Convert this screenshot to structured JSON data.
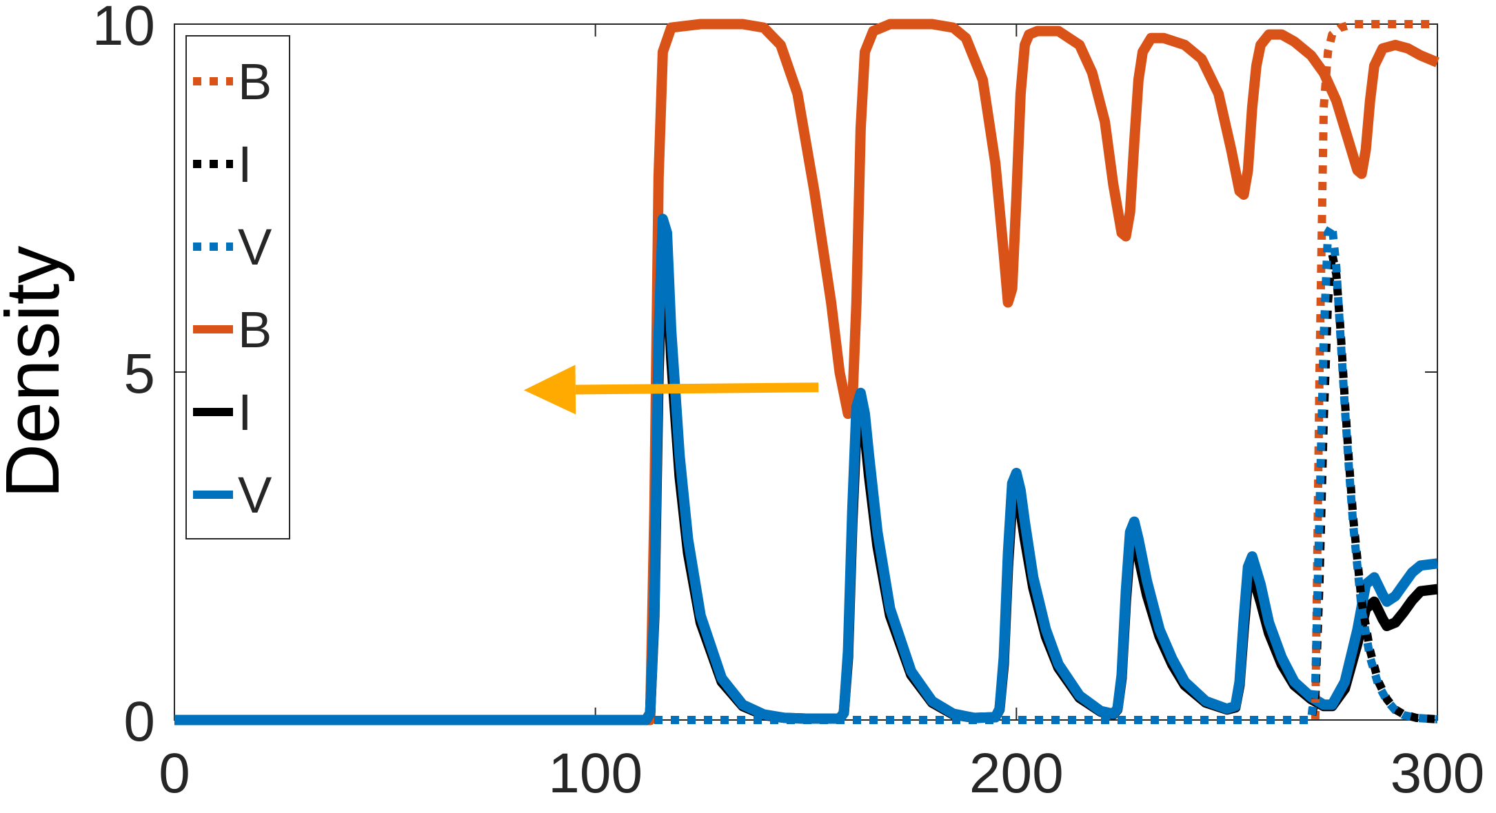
{
  "chart_data": {
    "type": "line",
    "xlabel": "",
    "ylabel": "Density",
    "xlim": [
      0,
      300
    ],
    "ylim": [
      0,
      10
    ],
    "xticks": [
      "0",
      "100",
      "200",
      "300"
    ],
    "yticks": [
      "0",
      "5",
      "10"
    ],
    "grid": false,
    "legend_position": "top-left",
    "colors": {
      "B": "#d95319",
      "I": "#000000",
      "V": "#0072bd",
      "arrow": "#ffaa00"
    },
    "annotations": [
      {
        "type": "arrow",
        "direction": "left",
        "from": [
          153,
          4.78
        ],
        "to": [
          83,
          4.74
        ]
      }
    ],
    "series": [
      {
        "name": "B",
        "style": "dotted",
        "color": "#d95319",
        "x": [
          0,
          271,
          272,
          273,
          274,
          275,
          277,
          280,
          290,
          300
        ],
        "y": [
          0,
          0,
          5,
          8.8,
          9.6,
          9.85,
          9.95,
          10,
          10,
          10
        ]
      },
      {
        "name": "I",
        "style": "dotted",
        "color": "#000000",
        "x": [
          0,
          270,
          271,
          272,
          273,
          274,
          275,
          276,
          277,
          278,
          279,
          280,
          282,
          284,
          286,
          288,
          290,
          292,
          295,
          300
        ],
        "y": [
          0,
          0,
          0.3,
          2.0,
          4.3,
          6.0,
          6.7,
          6.4,
          5.6,
          4.6,
          3.7,
          2.9,
          1.7,
          1.0,
          0.55,
          0.3,
          0.15,
          0.08,
          0.03,
          0.01
        ]
      },
      {
        "name": "V",
        "style": "dotted",
        "color": "#0072bd",
        "x": [
          0,
          270,
          271,
          272,
          273,
          274,
          275,
          276,
          277,
          278,
          279,
          280,
          282,
          284,
          286,
          288,
          290,
          292,
          295,
          300
        ],
        "y": [
          0,
          0,
          0.5,
          3.0,
          5.5,
          7.0,
          7.1,
          6.5,
          5.5,
          4.5,
          3.6,
          2.8,
          1.6,
          0.9,
          0.5,
          0.28,
          0.14,
          0.07,
          0.03,
          0.01
        ]
      },
      {
        "name": "B",
        "style": "solid",
        "color": "#d95319",
        "x": [
          0,
          113,
          114,
          115,
          116,
          118,
          125,
          135,
          140,
          144,
          148,
          152,
          156,
          158,
          160,
          161,
          162,
          163,
          164,
          166,
          170,
          180,
          185,
          188,
          192,
          195,
          197,
          198,
          199,
          200,
          201,
          202,
          203,
          205,
          210,
          215,
          218,
          221,
          223,
          225,
          226,
          227,
          228,
          229,
          230,
          232,
          235,
          240,
          244,
          248,
          251,
          253,
          254,
          255,
          256,
          257,
          258,
          260,
          263,
          266,
          270,
          273,
          276,
          279,
          281,
          282,
          283,
          284,
          285,
          287,
          290,
          293,
          296,
          300
        ],
        "y": [
          0,
          0,
          3.0,
          7.8,
          9.6,
          9.95,
          10,
          10,
          9.95,
          9.7,
          9.0,
          7.6,
          6.0,
          5.0,
          4.4,
          4.5,
          6.0,
          8.5,
          9.6,
          9.9,
          10,
          10,
          9.95,
          9.8,
          9.2,
          8.0,
          6.7,
          6.0,
          6.2,
          7.5,
          9.0,
          9.7,
          9.85,
          9.9,
          9.9,
          9.7,
          9.3,
          8.6,
          7.7,
          7.0,
          6.95,
          7.3,
          8.3,
          9.2,
          9.6,
          9.8,
          9.8,
          9.7,
          9.5,
          9.0,
          8.2,
          7.6,
          7.55,
          7.9,
          8.8,
          9.4,
          9.7,
          9.85,
          9.85,
          9.75,
          9.55,
          9.3,
          8.9,
          8.3,
          7.9,
          7.85,
          8.2,
          8.9,
          9.4,
          9.65,
          9.7,
          9.65,
          9.55,
          9.45
        ]
      },
      {
        "name": "I",
        "style": "solid",
        "color": "#000000",
        "x": [
          0,
          112,
          113,
          114,
          115,
          116,
          117,
          118,
          120,
          122,
          125,
          130,
          135,
          140,
          145,
          150,
          158,
          159,
          160,
          161,
          162,
          163,
          164,
          165,
          167,
          170,
          175,
          180,
          185,
          190,
          195,
          196,
          197,
          198,
          199,
          200,
          201,
          202,
          204,
          207,
          210,
          215,
          220,
          223,
          224,
          225,
          226,
          227,
          228,
          229,
          231,
          234,
          237,
          240,
          245,
          250,
          252,
          253,
          254,
          255,
          256,
          258,
          260,
          263,
          266,
          270,
          273,
          275,
          278,
          281,
          283,
          285,
          287,
          288,
          290,
          292,
          294,
          296,
          300
        ],
        "y": [
          0,
          0,
          0.1,
          1.5,
          5.0,
          6.8,
          6.5,
          5.2,
          3.5,
          2.4,
          1.4,
          0.55,
          0.2,
          0.07,
          0.03,
          0.02,
          0.02,
          0.1,
          0.9,
          2.8,
          4.2,
          4.4,
          4.1,
          3.5,
          2.5,
          1.5,
          0.65,
          0.25,
          0.08,
          0.03,
          0.04,
          0.15,
          0.8,
          2.2,
          3.15,
          3.3,
          3.0,
          2.6,
          1.9,
          1.2,
          0.75,
          0.32,
          0.12,
          0.08,
          0.15,
          0.6,
          1.7,
          2.5,
          2.6,
          2.35,
          1.8,
          1.2,
          0.8,
          0.5,
          0.25,
          0.15,
          0.18,
          0.5,
          1.3,
          2.0,
          2.1,
          1.7,
          1.25,
          0.8,
          0.5,
          0.3,
          0.2,
          0.2,
          0.45,
          1.1,
          1.6,
          1.7,
          1.45,
          1.35,
          1.4,
          1.55,
          1.72,
          1.85,
          1.88
        ]
      },
      {
        "name": "V",
        "style": "solid",
        "color": "#0072bd",
        "x": [
          0,
          112,
          113,
          114,
          115,
          116,
          117,
          118,
          120,
          122,
          125,
          130,
          135,
          140,
          145,
          150,
          158,
          159,
          160,
          161,
          162,
          163,
          164,
          165,
          167,
          170,
          175,
          180,
          185,
          190,
          195,
          196,
          197,
          198,
          199,
          200,
          201,
          202,
          204,
          207,
          210,
          215,
          220,
          223,
          224,
          225,
          226,
          227,
          228,
          229,
          231,
          234,
          237,
          240,
          245,
          250,
          252,
          253,
          254,
          255,
          256,
          258,
          260,
          263,
          266,
          270,
          273,
          275,
          278,
          281,
          283,
          285,
          287,
          288,
          290,
          292,
          294,
          296,
          300
        ],
        "y": [
          0,
          0,
          0.1,
          1.6,
          5.5,
          7.2,
          7.0,
          5.6,
          3.8,
          2.6,
          1.5,
          0.6,
          0.22,
          0.08,
          0.03,
          0.02,
          0.02,
          0.1,
          1.0,
          3.0,
          4.5,
          4.7,
          4.4,
          3.8,
          2.7,
          1.6,
          0.7,
          0.27,
          0.09,
          0.03,
          0.04,
          0.16,
          0.9,
          2.4,
          3.4,
          3.55,
          3.3,
          2.85,
          2.05,
          1.3,
          0.8,
          0.35,
          0.13,
          0.09,
          0.16,
          0.65,
          1.85,
          2.7,
          2.85,
          2.6,
          2.0,
          1.3,
          0.88,
          0.55,
          0.27,
          0.16,
          0.2,
          0.55,
          1.45,
          2.2,
          2.35,
          1.95,
          1.4,
          0.9,
          0.55,
          0.33,
          0.22,
          0.22,
          0.55,
          1.3,
          1.95,
          2.05,
          1.8,
          1.7,
          1.78,
          1.95,
          2.12,
          2.22,
          2.25
        ]
      }
    ]
  }
}
